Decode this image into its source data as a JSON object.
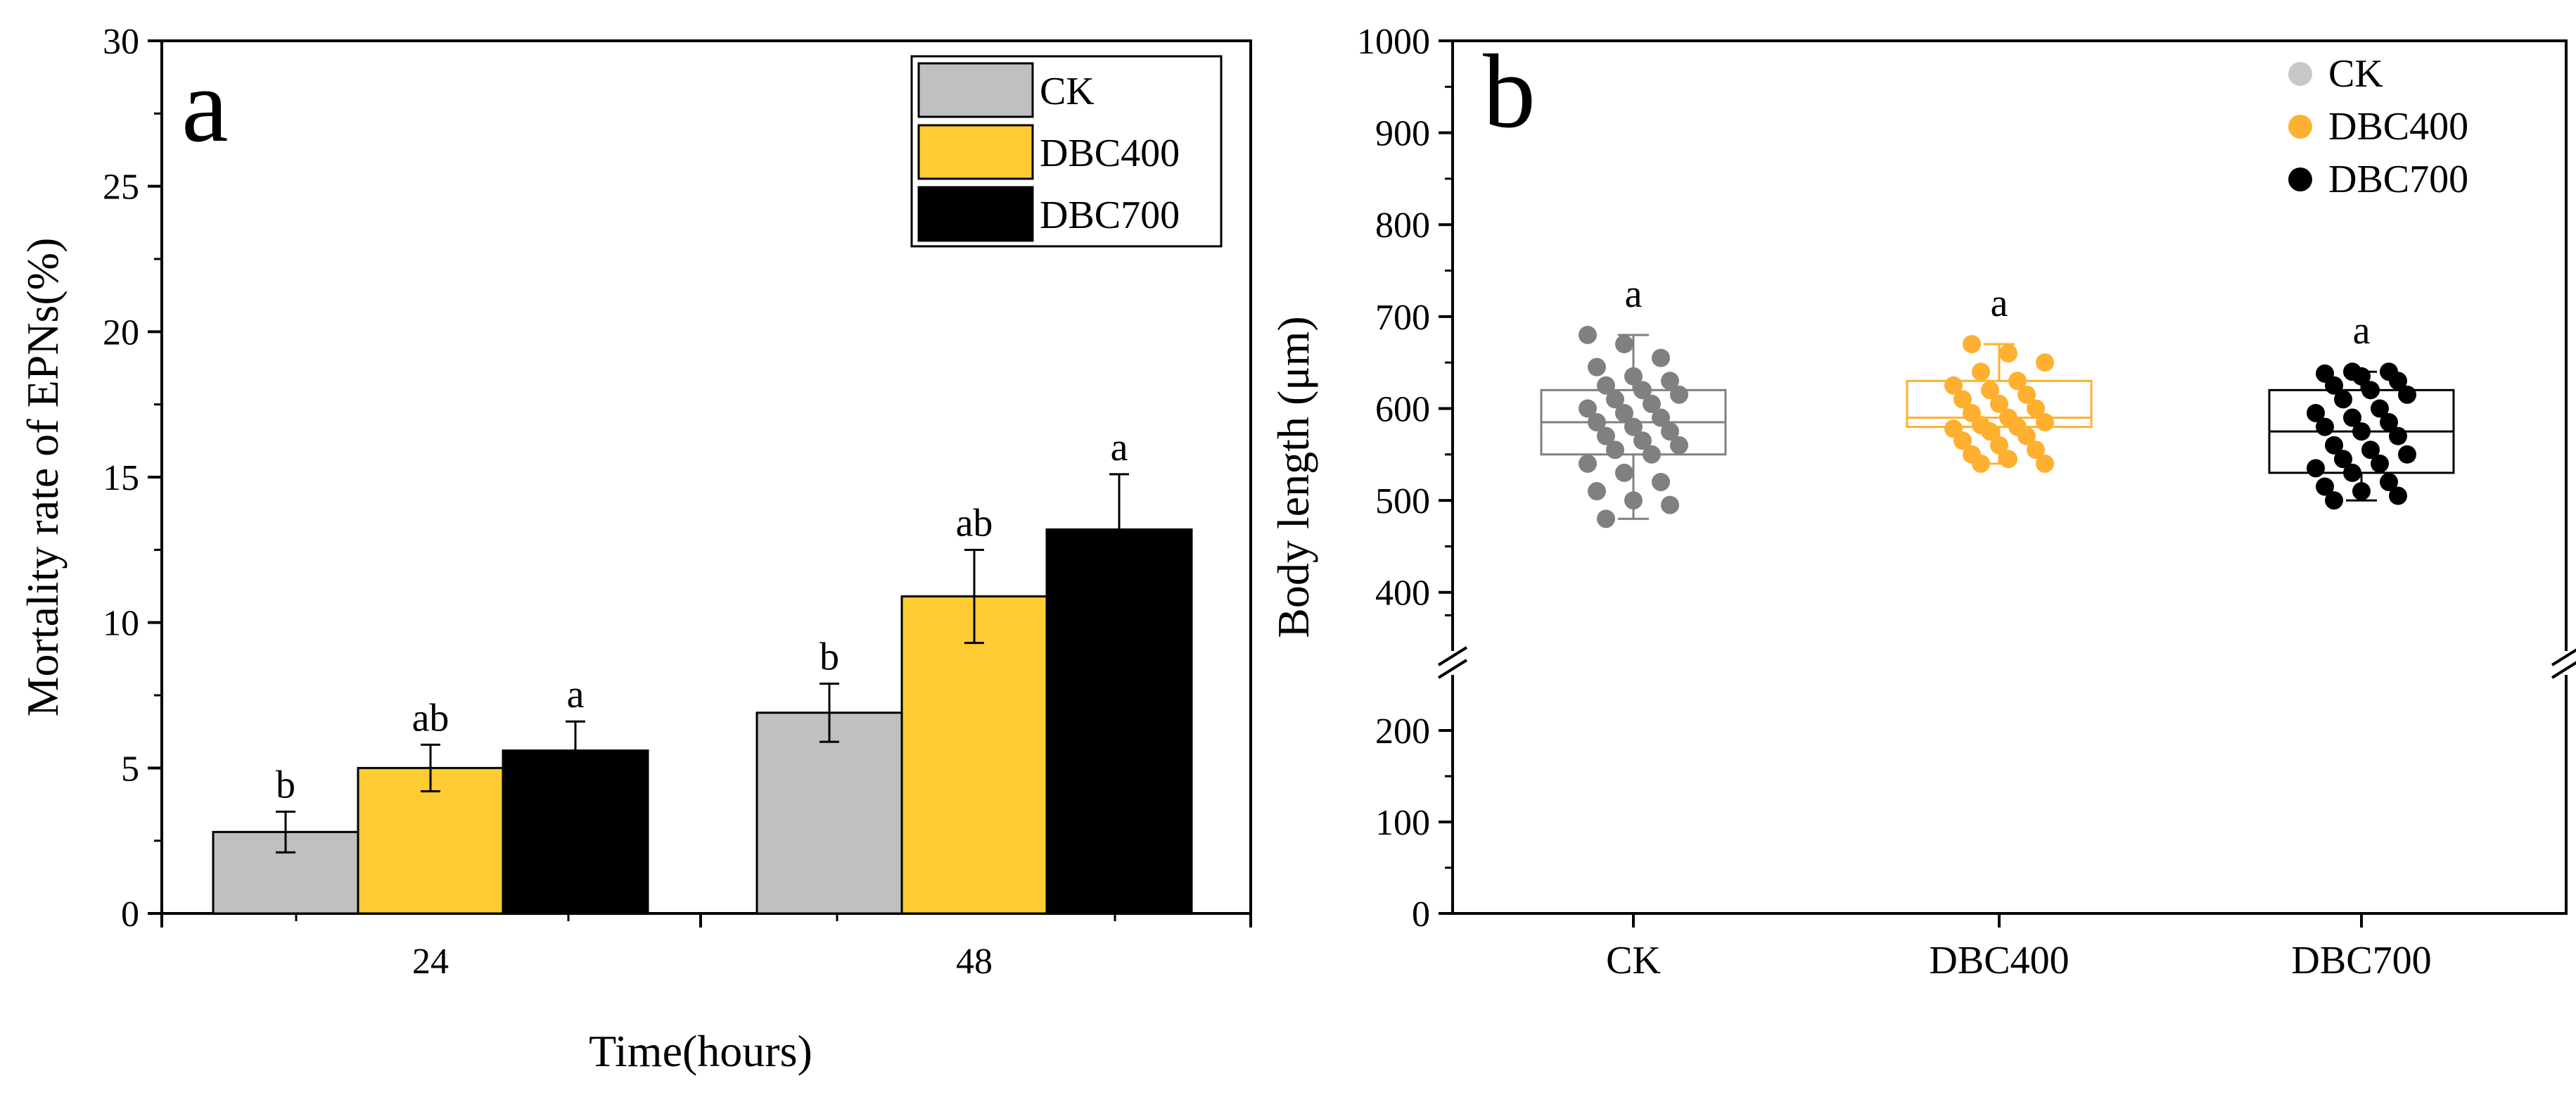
{
  "chart_data": [
    {
      "panel": "a",
      "type": "bar",
      "xlabel": "Time(hours)",
      "ylabel": "Mortality rate of EPNs(%)",
      "ylim": [
        0,
        30
      ],
      "yticks": [
        "0",
        "5",
        "10",
        "15",
        "20",
        "25",
        "30"
      ],
      "categories": [
        "24",
        "48"
      ],
      "legend_position": "top-right",
      "series": [
        {
          "name": "CK",
          "color": "#c0c0c0",
          "values": [
            2.8,
            6.9
          ],
          "errors": [
            0.7,
            1.0
          ],
          "letters": [
            "b",
            "b"
          ]
        },
        {
          "name": "DBC400",
          "color": "#ffcc33",
          "values": [
            5.0,
            10.9
          ],
          "errors": [
            0.8,
            1.6
          ],
          "letters": [
            "ab",
            "ab"
          ]
        },
        {
          "name": "DBC700",
          "color": "#000000",
          "values": [
            5.6,
            13.2
          ],
          "errors": [
            1.0,
            1.9
          ],
          "letters": [
            "a",
            "a"
          ]
        }
      ]
    },
    {
      "panel": "b",
      "type": "box",
      "ylabel": "Body length (μm)",
      "y_lower_segment": [
        0,
        250
      ],
      "y_upper_segment": [
        350,
        1000
      ],
      "yticks_lower": [
        "0",
        "100",
        "200"
      ],
      "yticks_upper": [
        "400",
        "500",
        "600",
        "700",
        "800",
        "900",
        "1000"
      ],
      "categories": [
        "CK",
        "DBC400",
        "DBC700"
      ],
      "legend_position": "top-right",
      "series": [
        {
          "name": "CK",
          "color": "#808080",
          "legend_color": "#c8c8c8",
          "box_color": "#808080",
          "min": 480,
          "q1": 550,
          "median": 585,
          "q3": 620,
          "max": 680,
          "letter": "a",
          "points": [
            680,
            670,
            655,
            645,
            635,
            630,
            625,
            620,
            615,
            610,
            605,
            600,
            595,
            590,
            585,
            580,
            575,
            570,
            565,
            560,
            555,
            550,
            540,
            530,
            520,
            510,
            500,
            495,
            480
          ]
        },
        {
          "name": "DBC400",
          "color": "#ffb030",
          "legend_color": "#ffb030",
          "box_color": "#ffb030",
          "min": 540,
          "q1": 580,
          "median": 590,
          "q3": 630,
          "max": 670,
          "letter": "a",
          "points": [
            670,
            660,
            650,
            640,
            630,
            625,
            620,
            615,
            610,
            605,
            600,
            595,
            590,
            585,
            582,
            580,
            578,
            575,
            570,
            565,
            560,
            555,
            550,
            545,
            540,
            540
          ]
        },
        {
          "name": "DBC700",
          "color": "#000000",
          "legend_color": "#000000",
          "box_color": "#000000",
          "min": 500,
          "q1": 530,
          "median": 575,
          "q3": 620,
          "max": 640,
          "letter": "a",
          "points": [
            640,
            640,
            638,
            635,
            630,
            625,
            620,
            615,
            610,
            600,
            595,
            590,
            585,
            580,
            575,
            570,
            560,
            555,
            550,
            545,
            540,
            535,
            530,
            520,
            515,
            510,
            505,
            500
          ]
        }
      ]
    }
  ]
}
